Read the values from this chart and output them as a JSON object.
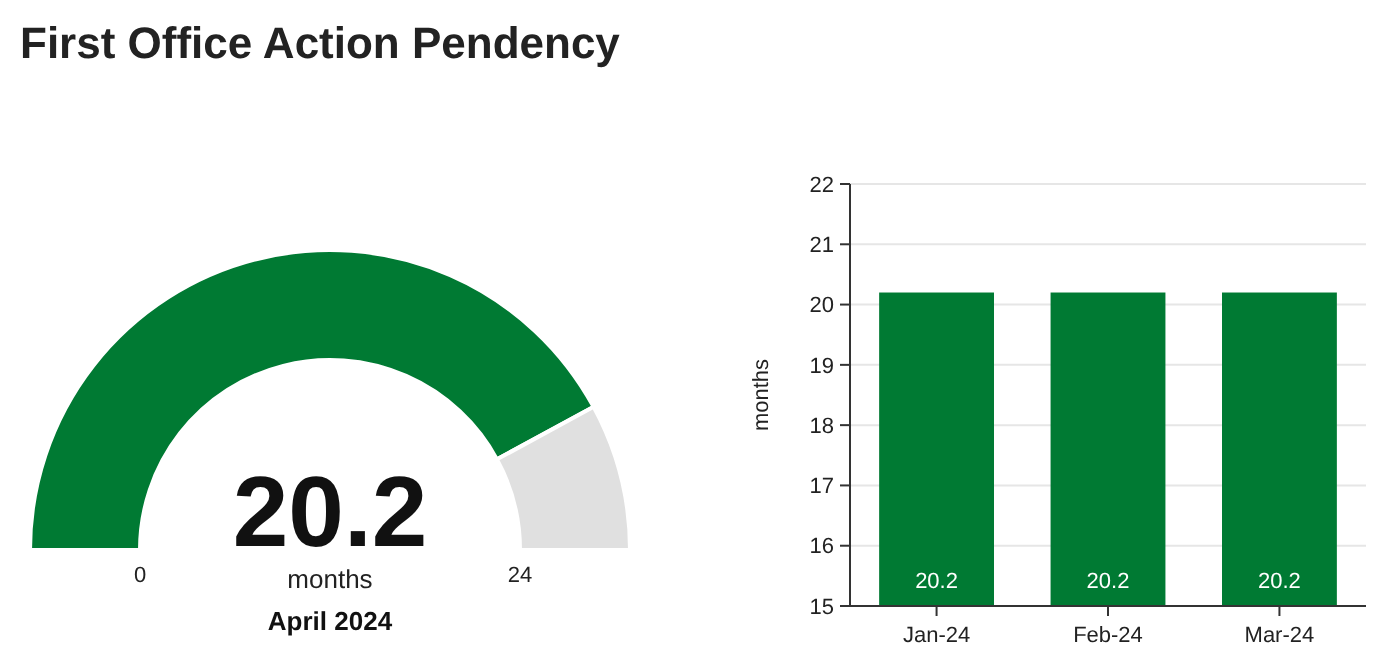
{
  "chart_data": [
    {
      "type": "donut",
      "title": "First Office Action Pendency",
      "categories": [
        null,
        null
      ],
      "values": [
        20.2,
        3.8
      ],
      "colors": [
        "#007a33",
        "#e0e0e0"
      ],
      "annotations": [
        "0",
        "24"
      ],
      "value_labels": [
        "20.2",
        null
      ],
      "ylabel": "months",
      "xlabel": "April 2024"
    },
    {
      "type": "bar",
      "categories": [
        "Jan-24",
        "Feb-24",
        "Mar-24"
      ],
      "values": [
        20.2,
        20.2,
        20.2
      ],
      "color": "#007a33",
      "ylim": [
        15,
        22
      ],
      "yticks": [
        15,
        16,
        17,
        18,
        19,
        20,
        21,
        22
      ],
      "ylabel": "months",
      "data_labels": true,
      "grid": "y"
    }
  ]
}
